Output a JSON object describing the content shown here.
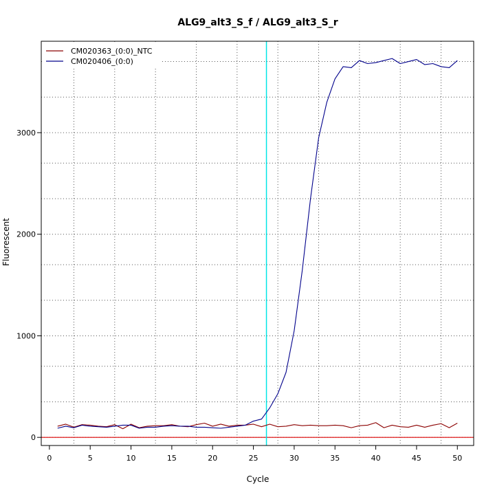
{
  "chart_data": {
    "type": "line",
    "title": "ALG9_alt3_S_f / ALG9_alt3_S_r",
    "xlabel": "Cycle",
    "ylabel": "Fluorescent",
    "xlim": [
      -1,
      52
    ],
    "ylim": [
      -80,
      3900
    ],
    "x_ticks": [
      0,
      5,
      10,
      15,
      20,
      25,
      30,
      35,
      40,
      45,
      50
    ],
    "x_tick_labels": [
      "0",
      "5",
      "10",
      "15",
      "20",
      "25",
      "30",
      "35",
      "40",
      "45",
      "50"
    ],
    "y_ticks": [
      0,
      1000,
      2000,
      3000
    ],
    "y_tick_labels": [
      "0",
      "1000",
      "2000",
      "3000"
    ],
    "grid": true,
    "grid_x": [
      3,
      8,
      13,
      18,
      23,
      28,
      33,
      38,
      43,
      48
    ],
    "grid_y": [
      0,
      350,
      700,
      1000,
      1350,
      1700,
      2000,
      2350,
      2700,
      3000,
      3350,
      3700
    ],
    "threshold_x": 26.6,
    "threshold_color": "#00e5e5",
    "baseline_y": 0,
    "baseline_color": "#dd0000",
    "legend_position": "top-left",
    "series": [
      {
        "name": "CM020363_(0:0)_NTC",
        "color": "#8b0000",
        "x": [
          1,
          2,
          3,
          4,
          5,
          6,
          7,
          8,
          9,
          10,
          11,
          12,
          13,
          14,
          15,
          16,
          17,
          18,
          19,
          20,
          21,
          22,
          23,
          24,
          25,
          26,
          27,
          28,
          29,
          30,
          31,
          32,
          33,
          34,
          35,
          36,
          37,
          38,
          39,
          40,
          41,
          42,
          43,
          44,
          45,
          46,
          47,
          48,
          49,
          50
        ],
        "y": [
          110,
          130,
          100,
          125,
          120,
          110,
          105,
          125,
          85,
          130,
          95,
          110,
          115,
          115,
          125,
          110,
          105,
          125,
          140,
          110,
          130,
          110,
          120,
          120,
          130,
          105,
          130,
          105,
          110,
          125,
          115,
          120,
          115,
          115,
          120,
          115,
          95,
          115,
          120,
          145,
          95,
          120,
          105,
          100,
          120,
          100,
          120,
          135,
          95,
          140
        ]
      },
      {
        "name": "CM020406_(0:0)",
        "color": "#00008b",
        "x": [
          1,
          2,
          3,
          4,
          5,
          6,
          7,
          8,
          9,
          10,
          11,
          12,
          13,
          14,
          15,
          16,
          17,
          18,
          19,
          20,
          21,
          22,
          23,
          24,
          25,
          26,
          27,
          28,
          29,
          30,
          31,
          32,
          33,
          34,
          35,
          36,
          37,
          38,
          39,
          40,
          41,
          42,
          43,
          44,
          45,
          46,
          47,
          48,
          49,
          50
        ],
        "y": [
          90,
          110,
          95,
          120,
          110,
          105,
          100,
          110,
          120,
          120,
          90,
          100,
          100,
          110,
          115,
          110,
          110,
          100,
          100,
          95,
          90,
          100,
          110,
          120,
          160,
          180,
          290,
          430,
          640,
          1050,
          1650,
          2350,
          2950,
          3300,
          3530,
          3650,
          3640,
          3710,
          3680,
          3690,
          3710,
          3730,
          3680,
          3700,
          3720,
          3670,
          3680,
          3650,
          3640,
          3710
        ]
      }
    ]
  }
}
